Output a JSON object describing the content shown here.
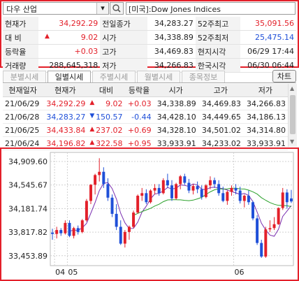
{
  "header": {
    "market_name": "다우 산업",
    "dropdown_arrow": "▾",
    "search_icon": "search-icon",
    "index_name": "[미국]:Dow Jones Indices"
  },
  "quote": {
    "rows": [
      {
        "l1": "현재가",
        "v1": "34,292.29",
        "c1": "up",
        "l2": "전일종가",
        "v2": "34,283.27",
        "c2": "blk",
        "l3": "52주최고",
        "v3": "35,091.56",
        "c3": "up"
      },
      {
        "l1": "대 비",
        "v1": "9.02",
        "c1": "up",
        "l2": "시가",
        "v2": "34,338.89",
        "c2": "blk",
        "l3": "52주최저",
        "v3": "25,475.14",
        "c3": "down"
      },
      {
        "l1": "등락율",
        "v1": "+0.03",
        "c1": "up",
        "l2": "고가",
        "v2": "34,469.83",
        "c2": "blk",
        "l3": "현지시각",
        "v3": "06/29 17:44",
        "c3": "blk"
      },
      {
        "l1": "거래량",
        "v1": "288,645,318",
        "c1": "blk",
        "l2": "저가",
        "v2": "34,266.83",
        "c2": "blk",
        "l3": "한국시각",
        "v3": "06/30 06:44",
        "c3": "blk"
      }
    ]
  },
  "tabs": [
    "분별시세",
    "일별시세",
    "주별시세",
    "월별시세",
    "종목정보"
  ],
  "chart_button": "차트",
  "daily": {
    "headers": [
      "현재일자",
      "현재가",
      "대비",
      "등락율",
      "시가",
      "고가",
      "저가"
    ],
    "rows": [
      {
        "date": "21/06/29",
        "close": "34,292.29",
        "dir": "up",
        "chg": "9.02",
        "pct": "+0.03",
        "open": "34,338.89",
        "high": "34,469.83",
        "low": "34,266.83"
      },
      {
        "date": "21/06/28",
        "close": "34,283.27",
        "dir": "down",
        "chg": "150.57",
        "pct": "-0.44",
        "open": "34,428.10",
        "high": "34,449.65",
        "low": "34,186.13"
      },
      {
        "date": "21/06/25",
        "close": "34,433.84",
        "dir": "up",
        "chg": "237.02",
        "pct": "+0.69",
        "open": "34,328.10",
        "high": "34,501.02",
        "low": "34,314.80"
      },
      {
        "date": "21/06/24",
        "close": "34,196.82",
        "dir": "up",
        "chg": "322.58",
        "pct": "+0.95",
        "open": "33,933.91",
        "high": "34,233.02",
        "low": "33,933.91"
      }
    ]
  },
  "chart_data": {
    "type": "candlestick",
    "y_ticks": [
      "34,909.60",
      "34,545.67",
      "34,181.74",
      "33,817.82",
      "33,453.89"
    ],
    "y_tick_values": [
      34909.6,
      34545.67,
      34181.74,
      33817.82,
      33453.89
    ],
    "ylim": [
      33300,
      35050
    ],
    "x_labels": [
      {
        "label": "04",
        "index": 1
      },
      {
        "label": "05",
        "index": 4
      },
      {
        "label": "06",
        "index": 43
      }
    ],
    "candles": [
      {
        "o": 33810,
        "h": 33870,
        "l": 33700,
        "c": 33790
      },
      {
        "o": 33790,
        "h": 33900,
        "l": 33720,
        "c": 33850
      },
      {
        "o": 33850,
        "h": 33880,
        "l": 33760,
        "c": 33800
      },
      {
        "o": 33800,
        "h": 34000,
        "l": 33780,
        "c": 33960
      },
      {
        "o": 33960,
        "h": 34000,
        "l": 33740,
        "c": 33760
      },
      {
        "o": 33760,
        "h": 33900,
        "l": 33720,
        "c": 33880
      },
      {
        "o": 33880,
        "h": 33920,
        "l": 33780,
        "c": 33820
      },
      {
        "o": 33820,
        "h": 34020,
        "l": 33800,
        "c": 34000
      },
      {
        "o": 34000,
        "h": 34330,
        "l": 33980,
        "c": 34300
      },
      {
        "o": 34300,
        "h": 34560,
        "l": 34250,
        "c": 34550
      },
      {
        "o": 34550,
        "h": 34720,
        "l": 34400,
        "c": 34700
      },
      {
        "o": 34700,
        "h": 34960,
        "l": 34600,
        "c": 34750
      },
      {
        "o": 34750,
        "h": 34820,
        "l": 34500,
        "c": 34560
      },
      {
        "o": 34560,
        "h": 34650,
        "l": 34300,
        "c": 34350
      },
      {
        "o": 34350,
        "h": 34400,
        "l": 34050,
        "c": 34100
      },
      {
        "o": 34100,
        "h": 34250,
        "l": 33850,
        "c": 33900
      },
      {
        "o": 33900,
        "h": 34000,
        "l": 33620,
        "c": 33640
      },
      {
        "o": 33640,
        "h": 33850,
        "l": 33580,
        "c": 33820
      },
      {
        "o": 33820,
        "h": 33920,
        "l": 33700,
        "c": 33900
      },
      {
        "o": 33900,
        "h": 34150,
        "l": 33880,
        "c": 34120
      },
      {
        "o": 34120,
        "h": 34400,
        "l": 34100,
        "c": 34380
      },
      {
        "o": 34380,
        "h": 34500,
        "l": 34300,
        "c": 34420
      },
      {
        "o": 34420,
        "h": 34480,
        "l": 34250,
        "c": 34280
      },
      {
        "o": 34280,
        "h": 34480,
        "l": 34260,
        "c": 34460
      },
      {
        "o": 34460,
        "h": 34560,
        "l": 34400,
        "c": 34500
      },
      {
        "o": 34500,
        "h": 34560,
        "l": 34380,
        "c": 34420
      },
      {
        "o": 34420,
        "h": 34650,
        "l": 34400,
        "c": 34620
      },
      {
        "o": 34620,
        "h": 34720,
        "l": 34500,
        "c": 34540
      },
      {
        "o": 34540,
        "h": 34620,
        "l": 34300,
        "c": 34340
      },
      {
        "o": 34340,
        "h": 34580,
        "l": 34320,
        "c": 34560
      },
      {
        "o": 34560,
        "h": 34700,
        "l": 34480,
        "c": 34680
      },
      {
        "o": 34680,
        "h": 34720,
        "l": 34550,
        "c": 34580
      },
      {
        "o": 34580,
        "h": 34640,
        "l": 34420,
        "c": 34460
      },
      {
        "o": 34460,
        "h": 34560,
        "l": 34400,
        "c": 34530
      },
      {
        "o": 34530,
        "h": 34600,
        "l": 34420,
        "c": 34480
      },
      {
        "o": 34480,
        "h": 34540,
        "l": 34320,
        "c": 34360
      },
      {
        "o": 34360,
        "h": 34560,
        "l": 34340,
        "c": 34540
      },
      {
        "o": 34540,
        "h": 34680,
        "l": 34480,
        "c": 34620
      },
      {
        "o": 34620,
        "h": 34660,
        "l": 34500,
        "c": 34560
      },
      {
        "o": 34560,
        "h": 34620,
        "l": 34380,
        "c": 34420
      },
      {
        "o": 34420,
        "h": 34520,
        "l": 34280,
        "c": 34300
      },
      {
        "o": 34300,
        "h": 34460,
        "l": 34240,
        "c": 34440
      },
      {
        "o": 34440,
        "h": 34540,
        "l": 34380,
        "c": 34500
      },
      {
        "o": 34500,
        "h": 34560,
        "l": 34400,
        "c": 34460
      },
      {
        "o": 34460,
        "h": 34520,
        "l": 34260,
        "c": 34300
      },
      {
        "o": 34300,
        "h": 34400,
        "l": 34200,
        "c": 34380
      },
      {
        "o": 34380,
        "h": 34460,
        "l": 34240,
        "c": 34280
      },
      {
        "o": 34280,
        "h": 34300,
        "l": 34000,
        "c": 34030
      },
      {
        "o": 34030,
        "h": 34080,
        "l": 33620,
        "c": 33650
      },
      {
        "o": 33650,
        "h": 33700,
        "l": 33420,
        "c": 33440
      },
      {
        "o": 33440,
        "h": 33900,
        "l": 33420,
        "c": 33860
      },
      {
        "o": 33860,
        "h": 34000,
        "l": 33820,
        "c": 33880
      },
      {
        "o": 33880,
        "h": 34050,
        "l": 33850,
        "c": 33940
      },
      {
        "o": 33940,
        "h": 34200,
        "l": 33930,
        "c": 34190
      },
      {
        "o": 34190,
        "h": 34500,
        "l": 34160,
        "c": 34430
      },
      {
        "o": 34430,
        "h": 34480,
        "l": 34180,
        "c": 34280
      },
      {
        "o": 34338,
        "h": 34470,
        "l": 34267,
        "c": 34292
      }
    ],
    "ma_short_color": "#7a2fb0",
    "ma_long_color": "#2aa02a",
    "up_color": "#e3202a",
    "down_color": "#1f4fd8"
  }
}
